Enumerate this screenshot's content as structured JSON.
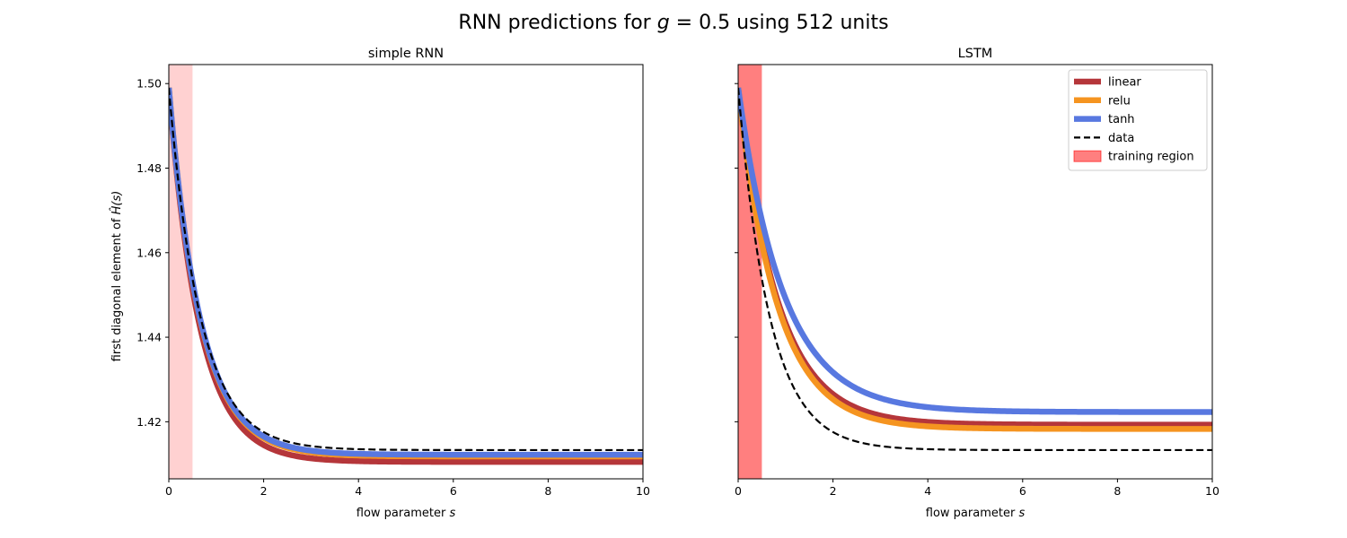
{
  "figure": {
    "title": {
      "prefix": "RNN predictions for ",
      "math_var": "g",
      "math_rest": " = 0.5",
      "suffix": " using 512 units"
    }
  },
  "colors": {
    "linear": "#b5363a",
    "relu": "#f59420",
    "tanh": "#5878e0",
    "data": "#000000",
    "training_region": "#ff0000"
  },
  "chart_data": [
    {
      "type": "line",
      "title": "simple RNN",
      "xlabel_text": "flow parameter ",
      "xlabel_var": "s",
      "ylabel_text": "first diagonal element of ",
      "ylabel_math": "Ĥ(s)",
      "xlim": [
        0,
        10
      ],
      "ylim": [
        1.4065,
        1.5045
      ],
      "xticks": [
        "0",
        "2",
        "4",
        "6",
        "8",
        "10"
      ],
      "yticks": [
        "1.42",
        "1.44",
        "1.46",
        "1.48",
        "1.50"
      ],
      "training_region": {
        "x_start": 0,
        "x_end": 0.5,
        "alpha": 0.18
      },
      "series": [
        {
          "key": "linear",
          "start": 1.499,
          "end": 1.4105,
          "rate": 1.55
        },
        {
          "key": "relu",
          "start": 1.499,
          "end": 1.4118,
          "rate": 1.5
        },
        {
          "key": "tanh",
          "start": 1.499,
          "end": 1.4122,
          "rate": 1.5
        },
        {
          "key": "data",
          "start": 1.499,
          "end": 1.4133,
          "rate": 1.5
        }
      ]
    },
    {
      "type": "line",
      "title": "LSTM",
      "xlabel_text": "flow parameter ",
      "xlabel_var": "s",
      "xlim": [
        0,
        10
      ],
      "ylim": [
        1.4065,
        1.5045
      ],
      "xticks": [
        "0",
        "2",
        "4",
        "6",
        "8",
        "10"
      ],
      "training_region": {
        "x_start": 0,
        "x_end": 0.5,
        "alpha": 0.5
      },
      "series": [
        {
          "key": "linear",
          "start": 1.499,
          "end": 1.4193,
          "rate": 1.2
        },
        {
          "key": "relu",
          "start": 1.499,
          "end": 1.4183,
          "rate": 1.22
        },
        {
          "key": "tanh",
          "start": 1.499,
          "end": 1.4223,
          "rate": 1.05
        },
        {
          "key": "data",
          "start": 1.499,
          "end": 1.4133,
          "rate": 1.5
        }
      ],
      "legend": {
        "position": "upper right",
        "entries": [
          {
            "key": "linear",
            "label": "linear"
          },
          {
            "key": "relu",
            "label": "relu"
          },
          {
            "key": "tanh",
            "label": "tanh"
          },
          {
            "key": "data",
            "label": "data"
          },
          {
            "key": "training_region",
            "label": "training region"
          }
        ]
      }
    }
  ]
}
